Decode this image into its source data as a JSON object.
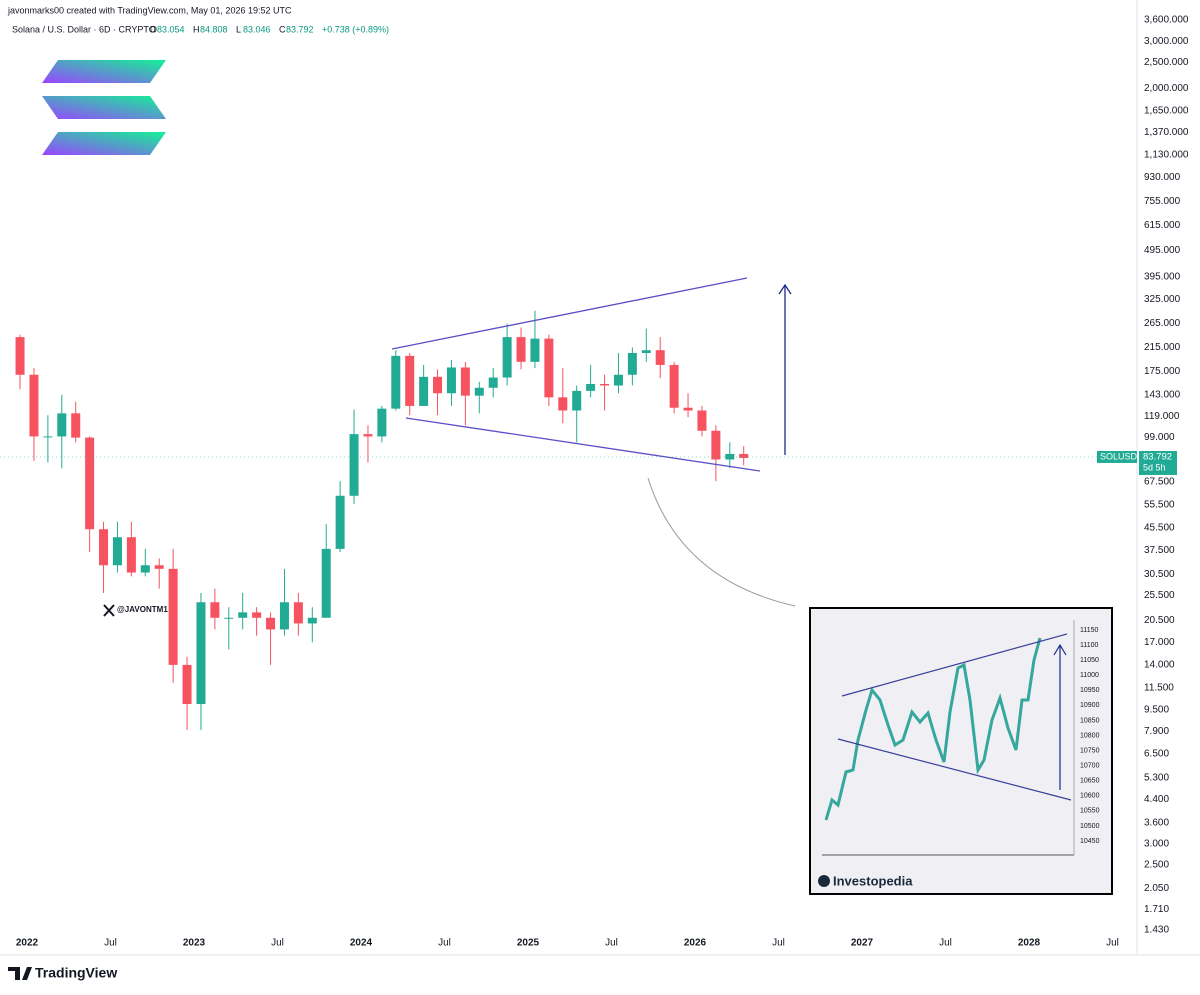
{
  "header": {
    "credit": "javonmarks00 created with TradingView.com, May 01, 2026 19:52 UTC",
    "symbol": "Solana / U.S. Dollar · 6D · CRYPTO",
    "ohlc": [
      {
        "label": "O",
        "value": "83.054"
      },
      {
        "label": "H",
        "value": "84.808"
      },
      {
        "label": "L",
        "value": "83.046"
      },
      {
        "label": "C",
        "value": "83.792"
      }
    ],
    "change": "+0.738 (+0.89%)"
  },
  "watermark": "@JAVONTM1",
  "brand": "TradingView",
  "price_tag": {
    "symbol": "SOLUSD",
    "price": {
      "value": 83.792,
      "label": "83.792"
    },
    "countdown": "5d 5h"
  },
  "inset": {
    "yticks": [
      "11150",
      "11100",
      "11050",
      "11000",
      "10950",
      "10900",
      "10850",
      "10800",
      "10750",
      "10700",
      "10650",
      "10600",
      "10550",
      "10500",
      "10450"
    ],
    "brand": "Investopedia"
  },
  "chart_data": {
    "type": "candlestick",
    "log_scale": true,
    "grid": false,
    "up_color": "#22ab94",
    "down_color": "#f7525f",
    "x": [
      "2021-12",
      "2022-01",
      "2022-02",
      "2022-03",
      "2022-04",
      "2022-05",
      "2022-06",
      "2022-07",
      "2022-08",
      "2022-09",
      "2022-10",
      "2022-11",
      "2022-12",
      "2023-01",
      "2023-02",
      "2023-03",
      "2023-04",
      "2023-05",
      "2023-06",
      "2023-07",
      "2023-08",
      "2023-09",
      "2023-10",
      "2023-11",
      "2023-12",
      "2024-01",
      "2024-02",
      "2024-03",
      "2024-04",
      "2024-05",
      "2024-06",
      "2024-07",
      "2024-08",
      "2024-09",
      "2024-10",
      "2024-11",
      "2024-12",
      "2025-01",
      "2025-02",
      "2025-03",
      "2025-04",
      "2025-05",
      "2025-06",
      "2025-07",
      "2025-08",
      "2025-09",
      "2025-10",
      "2025-11",
      "2025-12",
      "2026-01",
      "2026-02",
      "2026-03",
      "2026-04"
    ],
    "open": [
      235,
      170,
      100,
      100,
      122,
      99,
      45,
      33,
      42,
      31,
      33,
      32,
      14,
      10,
      24,
      21,
      21,
      22,
      21,
      19,
      24,
      20,
      21,
      38,
      60,
      102,
      100,
      127,
      200,
      130,
      167,
      145,
      181,
      142,
      152,
      166,
      235,
      190,
      232,
      140,
      125,
      148,
      157,
      155,
      170,
      205,
      210,
      185,
      128,
      125,
      105,
      82,
      86
    ],
    "high": [
      240,
      180,
      120,
      143,
      135,
      100,
      48,
      48,
      48,
      38,
      35,
      38,
      15,
      26,
      27,
      23,
      26,
      23,
      22,
      32,
      26,
      23,
      47,
      68,
      126,
      110,
      130,
      210,
      205,
      185,
      178,
      193,
      190,
      160,
      180,
      264,
      255,
      295,
      240,
      180,
      155,
      185,
      170,
      205,
      215,
      253,
      235,
      190,
      145,
      130,
      110,
      95,
      92
    ],
    "low": [
      150,
      81,
      80,
      76,
      95,
      37,
      26,
      31,
      30,
      30,
      27,
      12,
      8,
      8,
      19,
      16,
      19,
      18,
      14,
      18,
      18,
      17,
      21,
      37,
      56,
      80,
      95,
      125,
      120,
      130,
      120,
      130,
      110,
      122,
      140,
      155,
      178,
      180,
      130,
      112,
      95,
      140,
      125,
      145,
      155,
      190,
      165,
      122,
      118,
      100,
      68,
      76,
      78
    ],
    "close": [
      170,
      100,
      100,
      122,
      99,
      45,
      33,
      42,
      31,
      33,
      32,
      14,
      10,
      24,
      21,
      21,
      22,
      21,
      19,
      24,
      20,
      21,
      38,
      60,
      102,
      100,
      127,
      200,
      130,
      167,
      145,
      181,
      142,
      152,
      166,
      235,
      190,
      232,
      140,
      125,
      148,
      157,
      155,
      170,
      205,
      210,
      185,
      128,
      125,
      105,
      82,
      86,
      83.054
    ],
    "ylim": [
      1.43,
      3600
    ],
    "yticks": [
      {
        "value": 3600,
        "label": "3,600.000"
      },
      {
        "value": 3000,
        "label": "3,000.000"
      },
      {
        "value": 2500,
        "label": "2,500.000"
      },
      {
        "value": 2000,
        "label": "2,000.000"
      },
      {
        "value": 1650,
        "label": "1,650.000"
      },
      {
        "value": 1370,
        "label": "1,370.000"
      },
      {
        "value": 1130,
        "label": "1,130.000"
      },
      {
        "value": 930,
        "label": "930.000"
      },
      {
        "value": 755,
        "label": "755.000"
      },
      {
        "value": 615,
        "label": "615.000"
      },
      {
        "value": 495,
        "label": "495.000"
      },
      {
        "value": 395,
        "label": "395.000"
      },
      {
        "value": 325,
        "label": "325.000"
      },
      {
        "value": 265,
        "label": "265.000"
      },
      {
        "value": 215,
        "label": "215.000"
      },
      {
        "value": 175,
        "label": "175.000"
      },
      {
        "value": 143,
        "label": "143.000"
      },
      {
        "value": 119,
        "label": "119.000"
      },
      {
        "value": 99,
        "label": "99.000"
      },
      {
        "value": 67.5,
        "label": "67.500"
      },
      {
        "value": 55.5,
        "label": "55.500"
      },
      {
        "value": 45.5,
        "label": "45.500"
      },
      {
        "value": 37.5,
        "label": "37.500"
      },
      {
        "value": 30.5,
        "label": "30.500"
      },
      {
        "value": 25.5,
        "label": "25.500"
      },
      {
        "value": 20.5,
        "label": "20.500"
      },
      {
        "value": 17,
        "label": "17.000"
      },
      {
        "value": 14,
        "label": "14.000"
      },
      {
        "value": 11.5,
        "label": "11.500"
      },
      {
        "value": 9.5,
        "label": "9.500"
      },
      {
        "value": 7.9,
        "label": "7.900"
      },
      {
        "value": 6.5,
        "label": "6.500"
      },
      {
        "value": 5.3,
        "label": "5.300"
      },
      {
        "value": 4.4,
        "label": "4.400"
      },
      {
        "value": 3.6,
        "label": "3.600"
      },
      {
        "value": 3,
        "label": "3.000"
      },
      {
        "value": 2.5,
        "label": "2.500"
      },
      {
        "value": 2.05,
        "label": "2.050"
      },
      {
        "value": 1.71,
        "label": "1.710"
      },
      {
        "value": 1.43,
        "label": "1.430"
      }
    ],
    "xticks": [
      {
        "value": "2022-01",
        "label": "2022"
      },
      {
        "value": "2022-07",
        "label": "Jul"
      },
      {
        "value": "2023-01",
        "label": "2023"
      },
      {
        "value": "2023-07",
        "label": "Jul"
      },
      {
        "value": "2024-01",
        "label": "2024"
      },
      {
        "value": "2024-07",
        "label": "Jul"
      },
      {
        "value": "2025-01",
        "label": "2025"
      },
      {
        "value": "2025-07",
        "label": "Jul"
      },
      {
        "value": "2026-01",
        "label": "2026"
      },
      {
        "value": "2026-07",
        "label": "Jul"
      },
      {
        "value": "2027-01",
        "label": "2027"
      },
      {
        "value": "2027-07",
        "label": "Jul"
      },
      {
        "value": "2028-01",
        "label": "2028"
      },
      {
        "value": "2028-07",
        "label": "Jul"
      }
    ]
  }
}
